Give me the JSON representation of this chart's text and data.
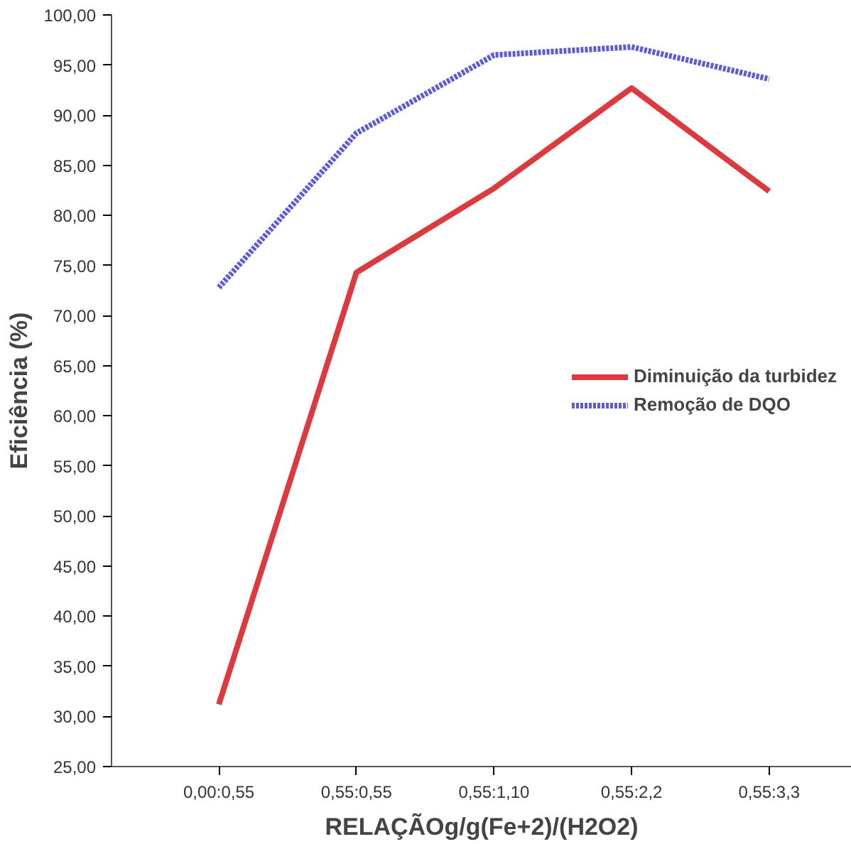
{
  "chart_data": {
    "type": "line",
    "xlabel": "RELAÇÃOg/g(Fe+2)/(H2O2)",
    "ylabel": "Eficiência (%)",
    "categories": [
      "0,00:0,55",
      "0,55:0,55",
      "0,55:1,10",
      "0,55:2,2",
      "0,55:3,3"
    ],
    "series": [
      {
        "name": "Diminuição da turbidez",
        "color": "#dc3a3f",
        "line_style": "solid",
        "values": [
          31.2,
          74.3,
          82.7,
          92.7,
          82.4
        ]
      },
      {
        "name": "Remoção de DQO",
        "color": "#5b5bd6",
        "line_style": "dotted",
        "values": [
          72.8,
          88.2,
          96.0,
          96.8,
          93.6
        ]
      }
    ],
    "ylim": [
      25,
      100
    ],
    "yticks": [
      {
        "value": 25,
        "label": "25,00"
      },
      {
        "value": 30,
        "label": "30,00"
      },
      {
        "value": 35,
        "label": "35,00"
      },
      {
        "value": 40,
        "label": "40,00"
      },
      {
        "value": 45,
        "label": "45,00"
      },
      {
        "value": 50,
        "label": "50,00"
      },
      {
        "value": 55,
        "label": "55,00"
      },
      {
        "value": 60,
        "label": "60,00"
      },
      {
        "value": 65,
        "label": "65,00"
      },
      {
        "value": 70,
        "label": "70,00"
      },
      {
        "value": 75,
        "label": "75,00"
      },
      {
        "value": 80,
        "label": "80,00"
      },
      {
        "value": 85,
        "label": "85,00"
      },
      {
        "value": 90,
        "label": "90,00"
      },
      {
        "value": 95,
        "label": "95,00"
      },
      {
        "value": 100,
        "label": "100,00"
      }
    ],
    "grid": false,
    "legend": "right"
  }
}
